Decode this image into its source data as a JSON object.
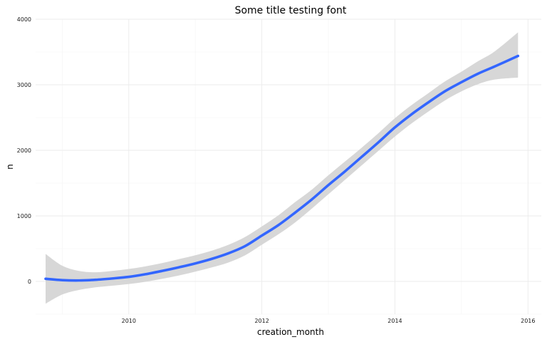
{
  "chart_data": {
    "type": "line",
    "title": "Some title testing font",
    "xlabel": "creation_month",
    "ylabel": "n",
    "xlim": [
      2008.6,
      2016.2
    ],
    "ylim": [
      -500,
      4000
    ],
    "x_ticks": [
      2010,
      2012,
      2014,
      2016
    ],
    "y_ticks": [
      0,
      1000,
      2000,
      3000,
      4000
    ],
    "grid": true,
    "legend": "none",
    "colors": {
      "line": "#3366ff",
      "ribbon": "#d3d3d3",
      "grid": "#ebebeb"
    },
    "series": [
      {
        "x": [
          2008.75,
          2009.0,
          2009.25,
          2009.5,
          2009.75,
          2010.0,
          2010.25,
          2010.5,
          2010.75,
          2011.0,
          2011.25,
          2011.5,
          2011.75,
          2012.0,
          2012.25,
          2012.5,
          2012.75,
          2013.0,
          2013.25,
          2013.5,
          2013.75,
          2014.0,
          2014.25,
          2014.5,
          2014.75,
          2015.0,
          2015.25,
          2015.5,
          2015.85
        ],
        "y": [
          40,
          20,
          15,
          25,
          45,
          70,
          110,
          160,
          215,
          275,
          345,
          430,
          540,
          700,
          860,
          1050,
          1250,
          1470,
          1680,
          1900,
          2120,
          2350,
          2550,
          2730,
          2900,
          3040,
          3170,
          3280,
          3440
        ],
        "lower": [
          -340,
          -200,
          -130,
          -90,
          -65,
          -40,
          -5,
          40,
          90,
          150,
          215,
          290,
          400,
          560,
          720,
          900,
          1110,
          1330,
          1550,
          1770,
          1990,
          2210,
          2410,
          2590,
          2760,
          2900,
          3010,
          3080,
          3110
        ],
        "upper": [
          420,
          240,
          160,
          140,
          160,
          190,
          230,
          280,
          340,
          400,
          470,
          560,
          680,
          840,
          1010,
          1210,
          1400,
          1620,
          1830,
          2040,
          2260,
          2490,
          2690,
          2870,
          3050,
          3200,
          3360,
          3510,
          3800
        ]
      }
    ]
  }
}
